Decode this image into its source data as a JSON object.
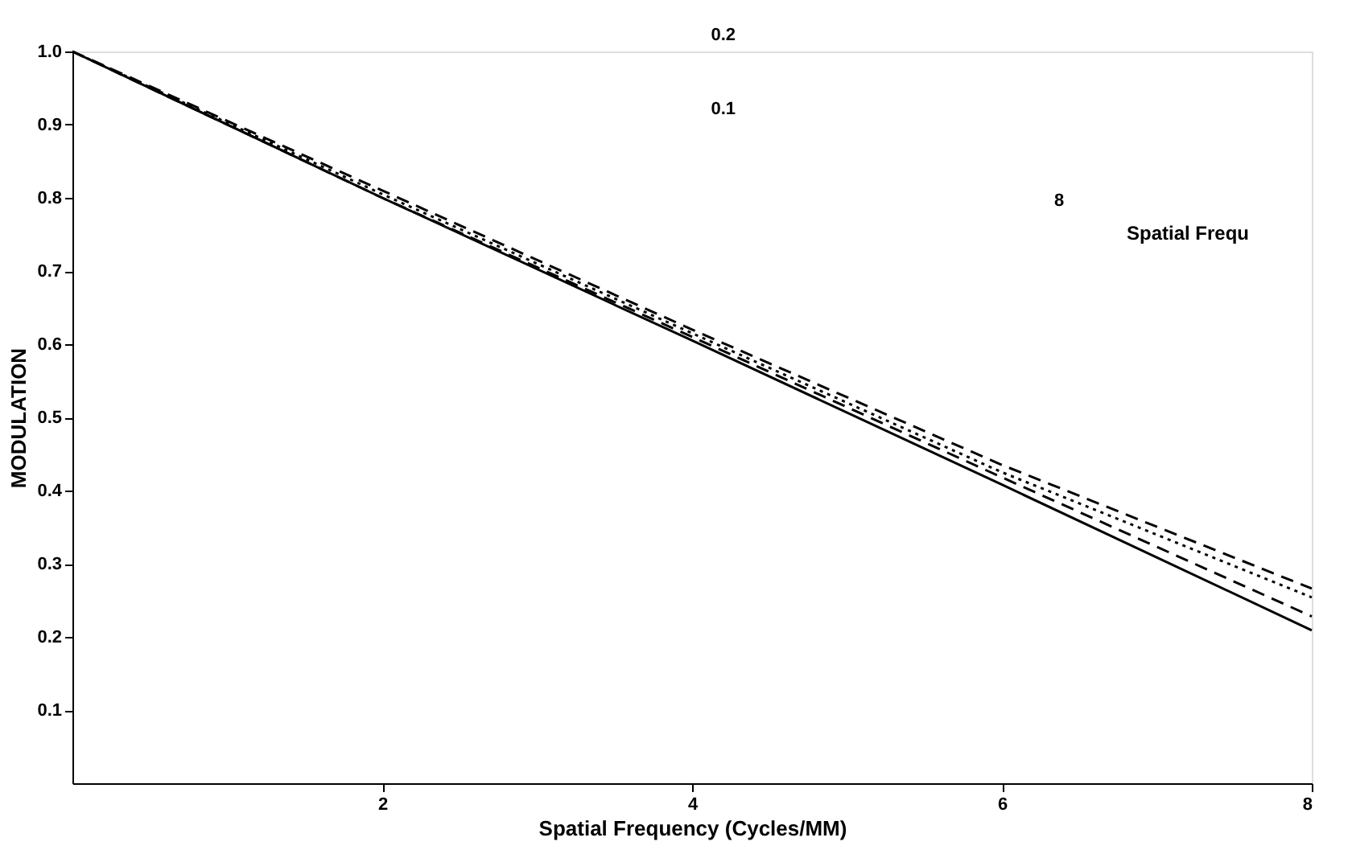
{
  "chart_data": {
    "type": "line",
    "xlabel": "Spatial Frequency (Cycles/MM)",
    "ylabel": "MODULATION",
    "x": [
      0,
      2,
      4,
      6,
      8
    ],
    "xlim": [
      0,
      8
    ],
    "xticks": [
      2,
      4,
      6,
      8
    ],
    "ylim": [
      0,
      1.0
    ],
    "yticks": [
      {
        "value": 0.1,
        "label": "0.1"
      },
      {
        "value": 0.2,
        "label": "0.2"
      },
      {
        "value": 0.3,
        "label": "0.3"
      },
      {
        "value": 0.4,
        "label": "0.4"
      },
      {
        "value": 0.5,
        "label": "0.5"
      },
      {
        "value": 0.6,
        "label": "0.6"
      },
      {
        "value": 0.7,
        "label": "0.7"
      },
      {
        "value": 0.8,
        "label": "0.8"
      },
      {
        "value": 0.9,
        "label": "0.9"
      },
      {
        "value": 1.0,
        "label": "1.0"
      }
    ],
    "grid": false,
    "marker": "none",
    "annotations": [
      "0.2",
      "0.1",
      "8",
      "Spatial Frequ"
    ],
    "series": [
      {
        "color": "#000000",
        "line_style": "dashed",
        "values": [
          1.0,
          0.81,
          0.62,
          0.435,
          0.266
        ]
      },
      {
        "color": "#000000",
        "line_style": "dotted",
        "values": [
          1.0,
          0.805,
          0.615,
          0.425,
          0.254
        ]
      },
      {
        "color": "#000000",
        "line_style": "dashed",
        "values": [
          1.0,
          0.8,
          0.61,
          0.418,
          0.228
        ]
      },
      {
        "color": "#000000",
        "line_style": "solid",
        "values": [
          1.0,
          0.8,
          0.605,
          0.408,
          0.209
        ]
      }
    ]
  }
}
